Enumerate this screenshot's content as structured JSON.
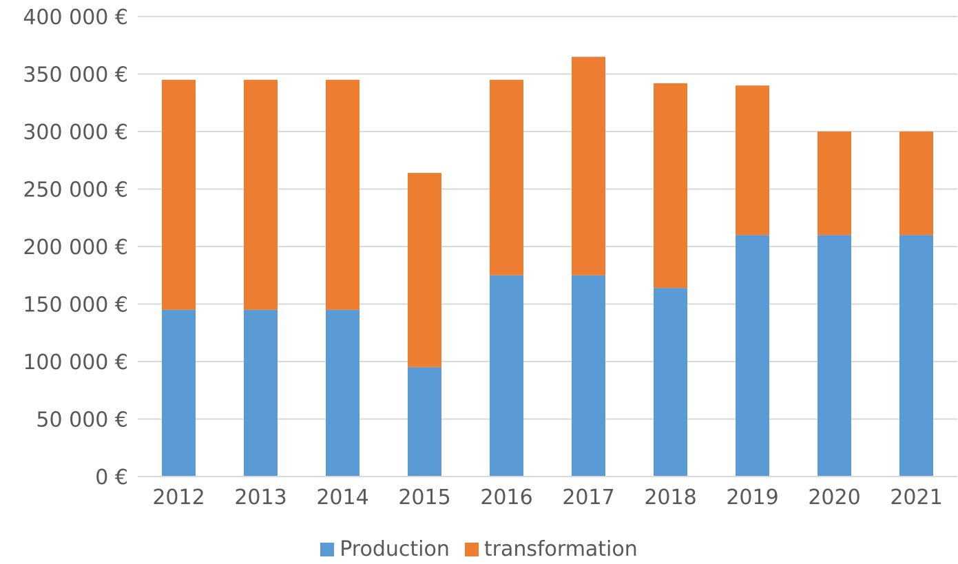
{
  "chart_data": {
    "type": "bar",
    "stacked": true,
    "categories": [
      "2012",
      "2013",
      "2014",
      "2015",
      "2016",
      "2017",
      "2018",
      "2019",
      "2020",
      "2021"
    ],
    "series": [
      {
        "name": "Production",
        "color": "#5B9BD5",
        "values": [
          145000,
          145000,
          145000,
          95000,
          175000,
          175000,
          164000,
          210000,
          210000,
          210000
        ]
      },
      {
        "name": "transformation",
        "color": "#ED7D31",
        "values": [
          200000,
          200000,
          200000,
          169000,
          170000,
          190000,
          178000,
          130000,
          90000,
          90000
        ]
      }
    ],
    "ylim": [
      0,
      400000
    ],
    "yticks": [
      0,
      50000,
      100000,
      150000,
      200000,
      250000,
      300000,
      350000,
      400000
    ],
    "ytick_labels": [
      "0 €",
      "50 000 €",
      "100 000 €",
      "150 000 €",
      "200 000 €",
      "250 000 €",
      "300 000 €",
      "350 000 €",
      "400 000 €"
    ],
    "grid": true,
    "legend_position": "bottom"
  }
}
